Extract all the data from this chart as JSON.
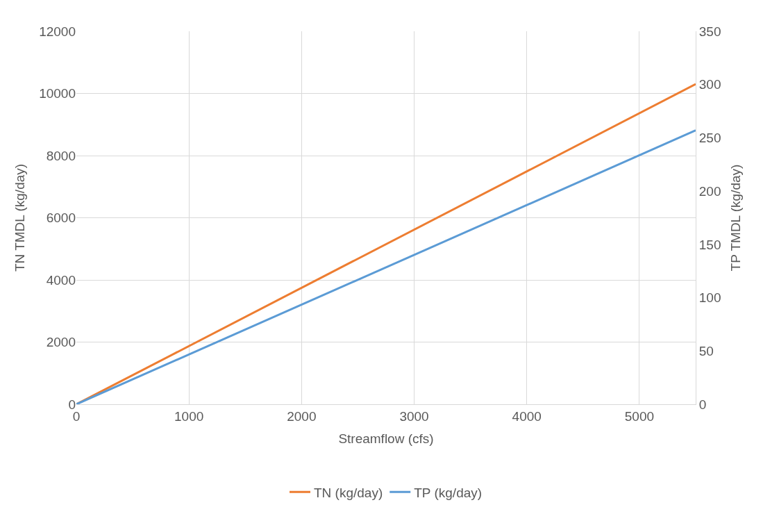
{
  "chart_data": {
    "type": "line",
    "xlabel": "Streamflow (cfs)",
    "ylabel": "TN TMDL (kg/day)",
    "y2label": "TP TMDL (kg/day)",
    "x": [
      0,
      5500
    ],
    "series": [
      {
        "name": "TN (kg/day)",
        "color": "#ed7d31",
        "values": [
          0,
          10300
        ]
      },
      {
        "name": "TP (kg/day)",
        "color": "#5b9bd5",
        "values": [
          0,
          257
        ],
        "axis": "y2"
      }
    ],
    "xlim": [
      0,
      5500
    ],
    "xticks": [
      0,
      1000,
      2000,
      3000,
      4000,
      5000
    ],
    "ylim": [
      0,
      12000
    ],
    "yticks": [
      0,
      2000,
      4000,
      6000,
      8000,
      10000,
      12000
    ],
    "y2lim": [
      0,
      350
    ],
    "y2ticks": [
      0,
      50,
      100,
      150,
      200,
      250,
      300,
      350
    ],
    "grid": true,
    "legend": "bottom",
    "marker": "none",
    "line_style": "solid"
  }
}
